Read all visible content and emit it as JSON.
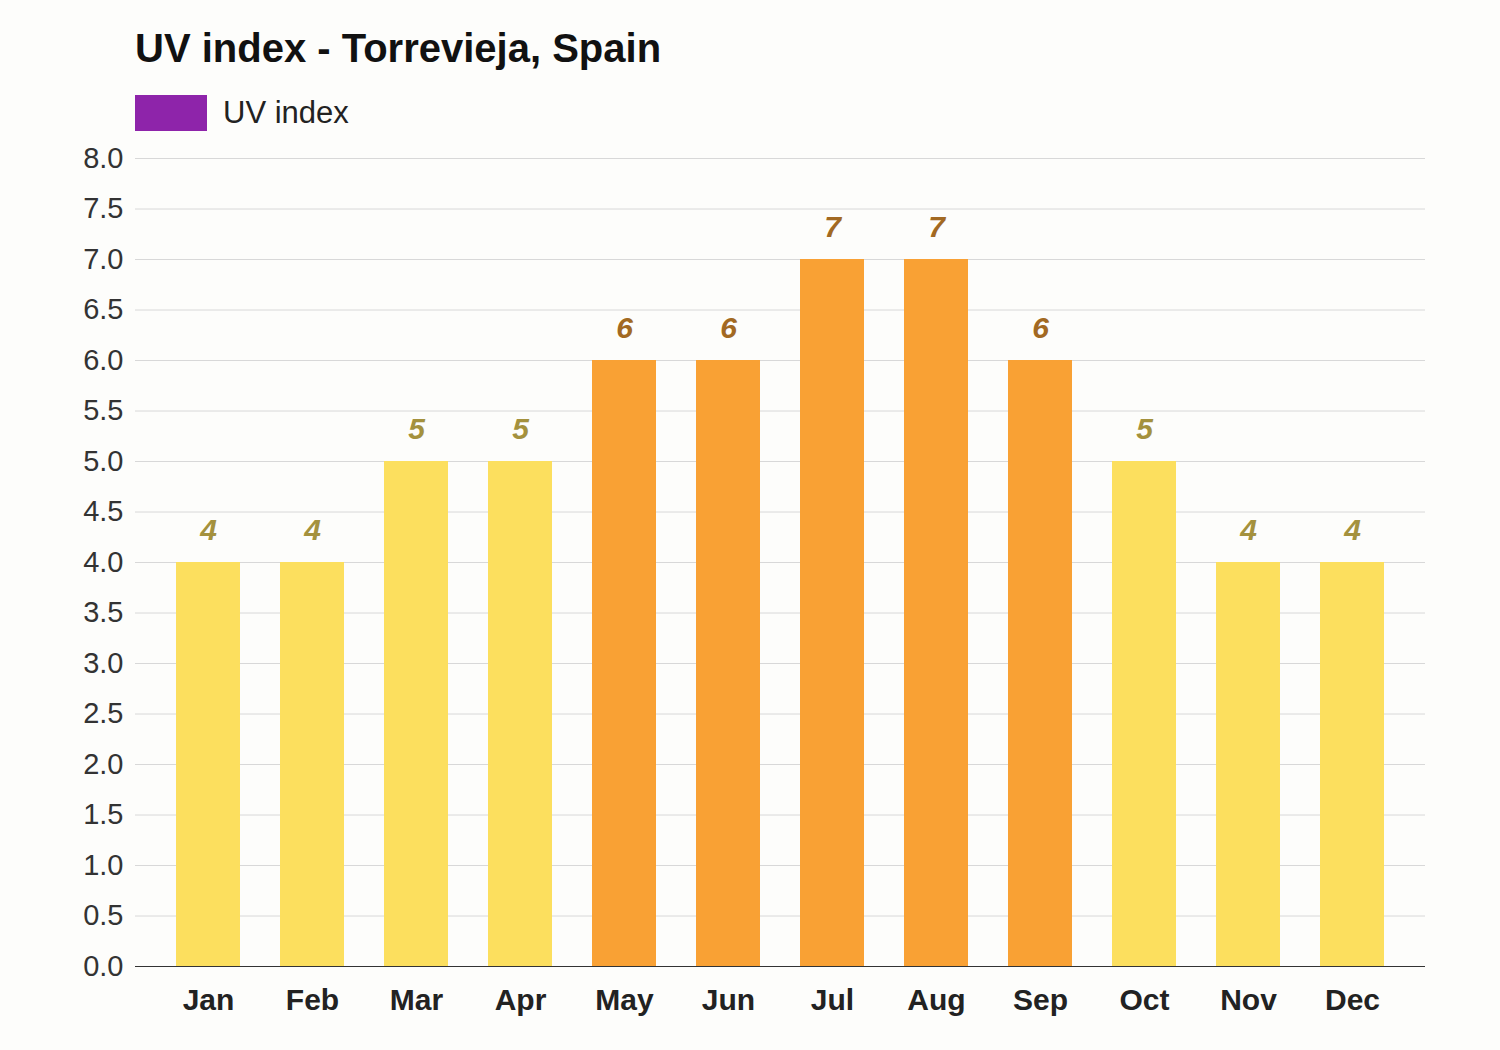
{
  "chart_data": {
    "type": "bar",
    "title": "UV index - Torrevieja, Spain",
    "categories": [
      "Jan",
      "Feb",
      "Mar",
      "Apr",
      "May",
      "Jun",
      "Jul",
      "Aug",
      "Sep",
      "Oct",
      "Nov",
      "Dec"
    ],
    "series": [
      {
        "name": "UV index",
        "color": "#8e24aa",
        "colors": [
          "#fcdf5e",
          "#fcdf5e",
          "#fcdf5e",
          "#fcdf5e",
          "#f9a134",
          "#f9a134",
          "#f9a134",
          "#f9a134",
          "#f9a134",
          "#fcdf5e",
          "#fcdf5e",
          "#fcdf5e"
        ],
        "values": [
          4,
          4,
          5,
          5,
          6,
          6,
          7,
          7,
          6,
          5,
          4,
          4
        ]
      }
    ],
    "ylim": [
      0,
      8
    ],
    "yticks": [
      {
        "value": 0,
        "label": "0.0"
      },
      0.5,
      {
        "value": 1,
        "label": "1.0"
      },
      1.5,
      {
        "value": 2,
        "label": "2.0"
      },
      2.5,
      {
        "value": 3,
        "label": "3.0"
      },
      3.5,
      {
        "value": 4,
        "label": "4.0"
      },
      4.5,
      {
        "value": 5,
        "label": "5.0"
      },
      5.5,
      {
        "value": 6,
        "label": "6.0"
      },
      6.5,
      {
        "value": 7,
        "label": "7.0"
      },
      7.5,
      {
        "value": 8,
        "label": "8.0"
      }
    ],
    "grid": true,
    "legend": "top",
    "data_labels": true
  }
}
